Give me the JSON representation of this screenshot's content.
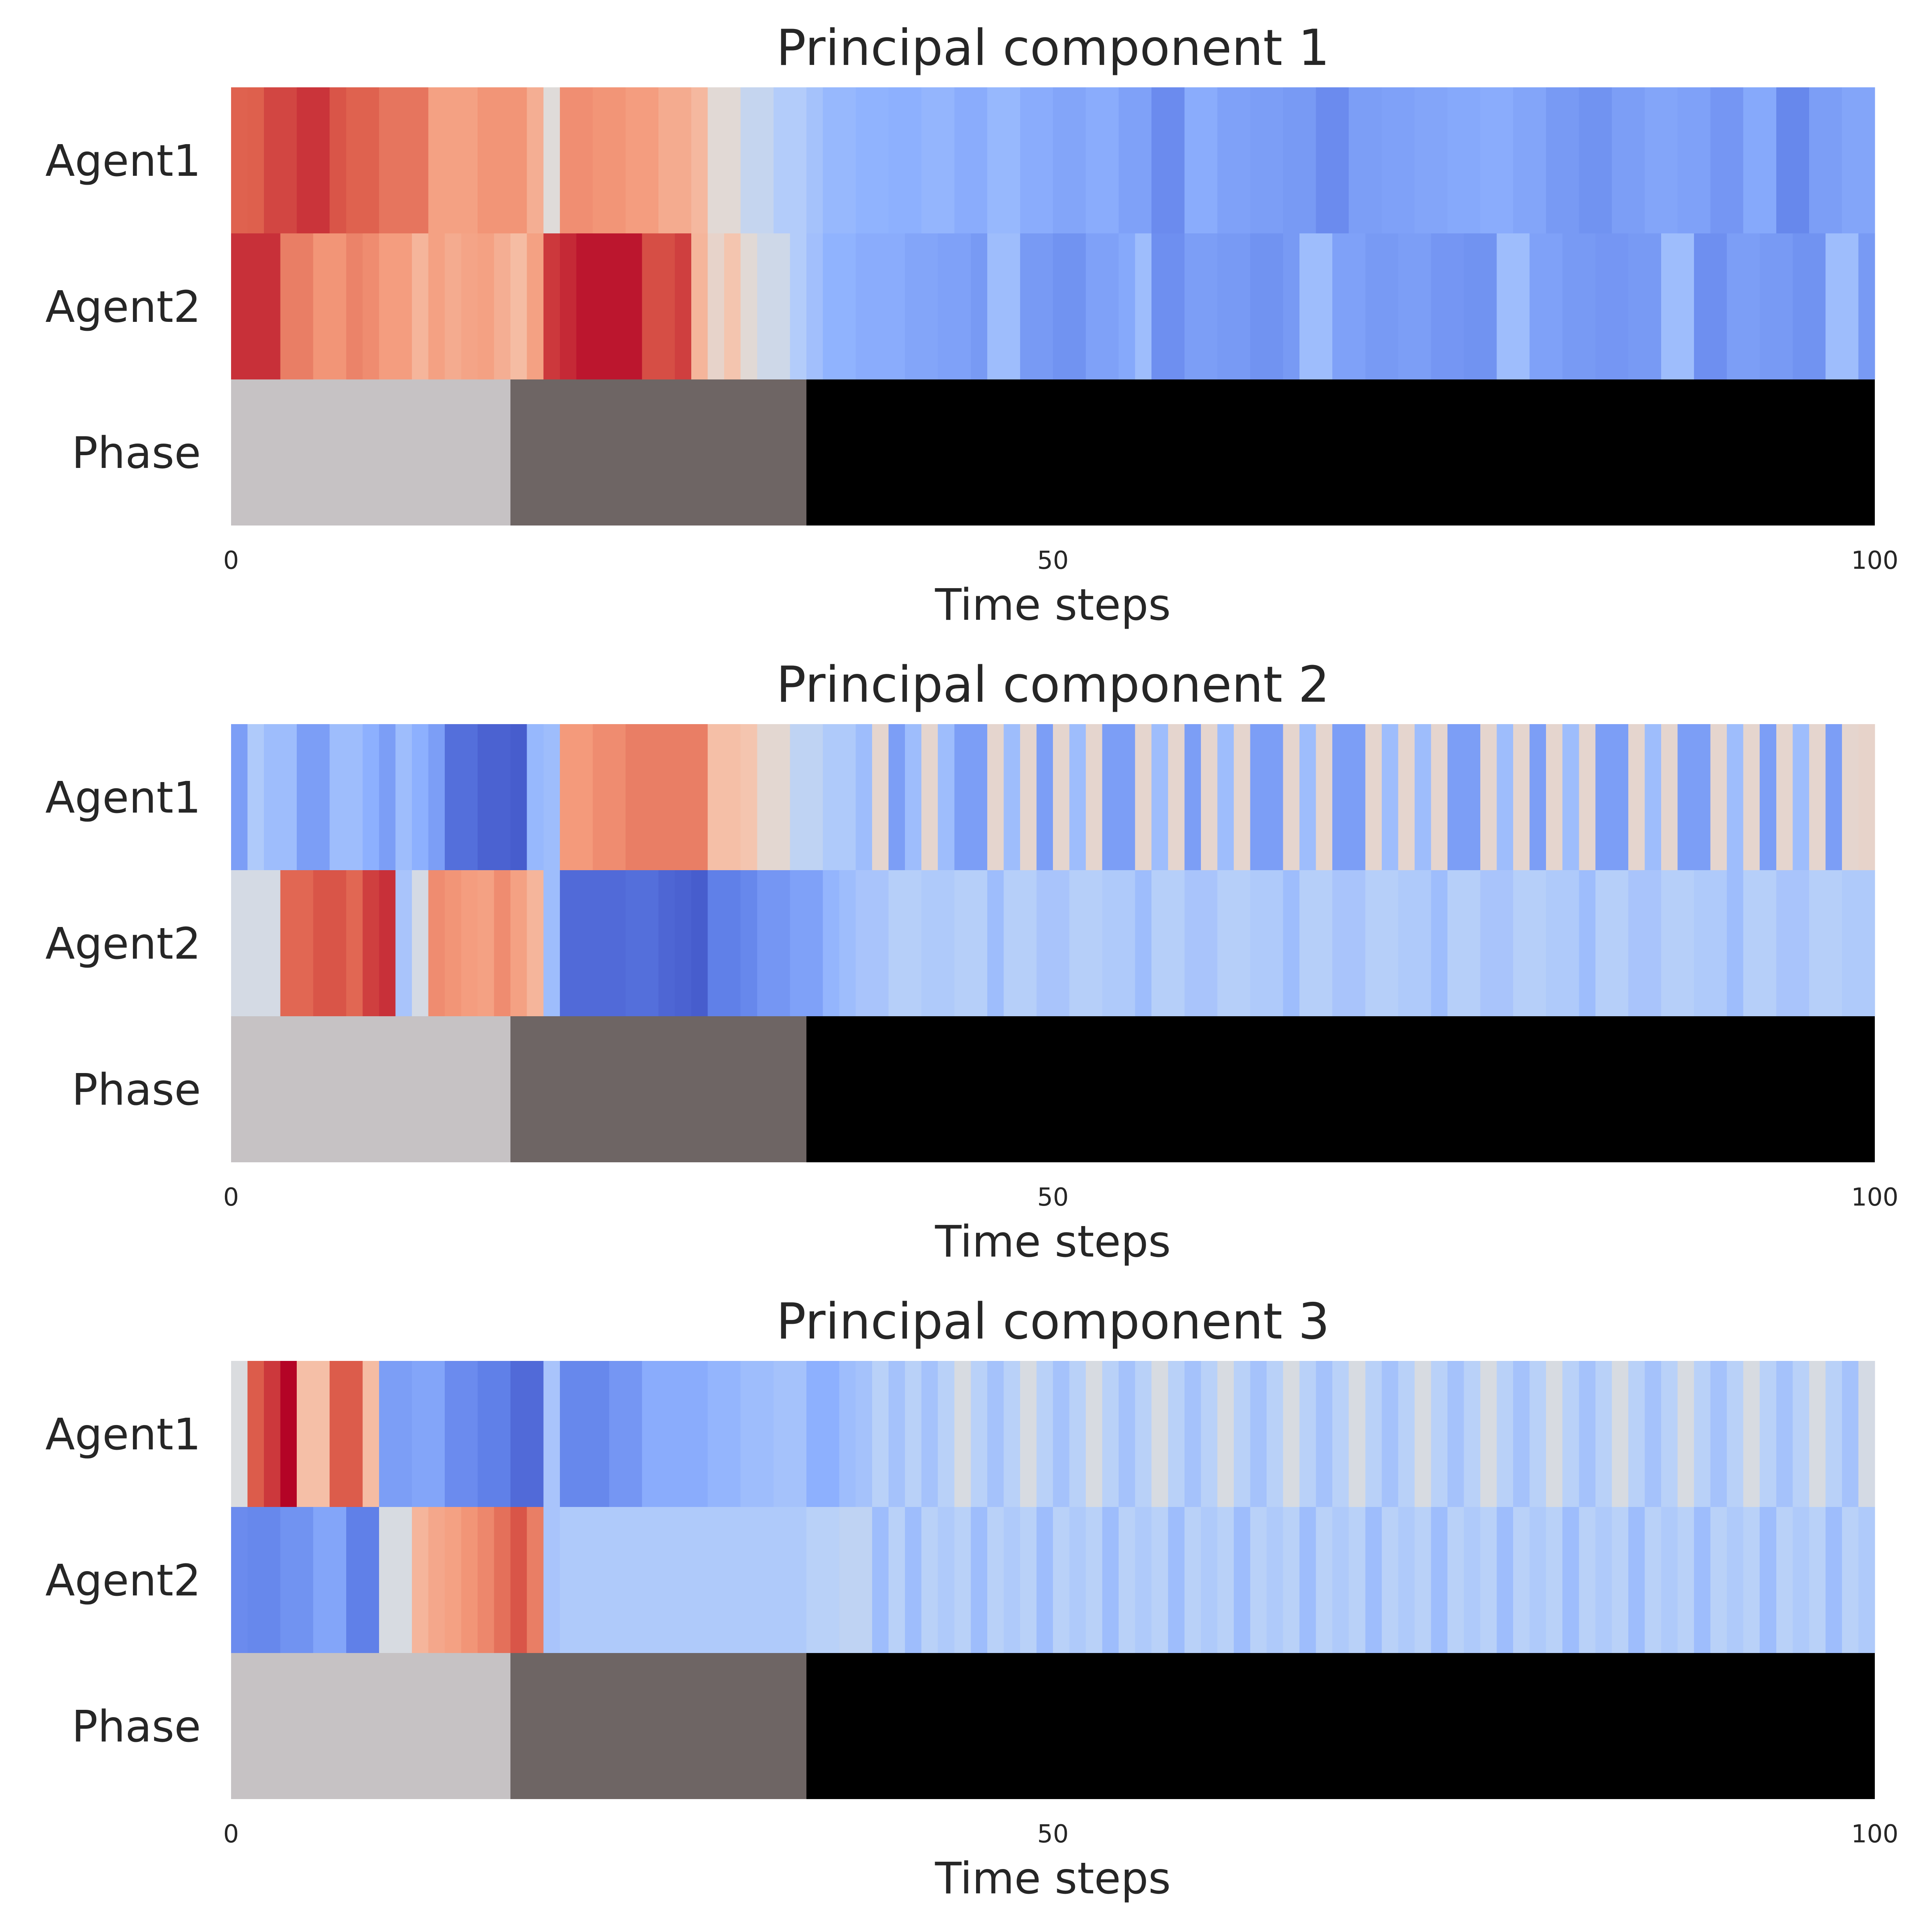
{
  "chart_data": [
    {
      "type": "heatmap",
      "title": "Principal component 1",
      "xlabel": "Time steps",
      "xticks": [
        0,
        50,
        100
      ],
      "xlim": [
        0,
        100
      ],
      "rows": [
        "Agent1",
        "Agent2",
        "Phase"
      ],
      "colormap": "coolwarm",
      "value_range": [
        -1,
        1
      ],
      "phase_segments": [
        {
          "start": 0,
          "end": 17,
          "color": "#c6c2c4"
        },
        {
          "start": 17,
          "end": 35,
          "color": "#6e6564"
        },
        {
          "start": 35,
          "end": 100,
          "color": "#000000"
        }
      ],
      "series": [
        {
          "name": "Agent1",
          "values": [
            0.74,
            0.75,
            0.82,
            0.82,
            0.87,
            0.87,
            0.78,
            0.74,
            0.74,
            0.66,
            0.66,
            0.66,
            0.46,
            0.46,
            0.46,
            0.52,
            0.52,
            0.52,
            0.38,
            0.02,
            0.55,
            0.55,
            0.52,
            0.52,
            0.48,
            0.48,
            0.4,
            0.4,
            0.32,
            0.04,
            0.04,
            -0.16,
            -0.16,
            -0.28,
            -0.28,
            -0.36,
            -0.44,
            -0.44,
            -0.48,
            -0.48,
            -0.5,
            -0.5,
            -0.46,
            -0.46,
            -0.52,
            -0.52,
            -0.44,
            -0.44,
            -0.52,
            -0.52,
            -0.56,
            -0.56,
            -0.52,
            -0.52,
            -0.58,
            -0.58,
            -0.7,
            -0.7,
            -0.52,
            -0.52,
            -0.58,
            -0.58,
            -0.6,
            -0.6,
            -0.62,
            -0.62,
            -0.7,
            -0.7,
            -0.6,
            -0.6,
            -0.58,
            -0.58,
            -0.56,
            -0.56,
            -0.54,
            -0.54,
            -0.52,
            -0.52,
            -0.56,
            -0.56,
            -0.62,
            -0.62,
            -0.66,
            -0.66,
            -0.6,
            -0.6,
            -0.56,
            -0.56,
            -0.58,
            -0.58,
            -0.64,
            -0.64,
            -0.54,
            -0.54,
            -0.72,
            -0.72,
            -0.6,
            -0.6,
            -0.56,
            -0.56
          ]
        },
        {
          "name": "Agent2",
          "values": [
            0.88,
            0.88,
            0.88,
            0.62,
            0.62,
            0.52,
            0.52,
            0.6,
            0.56,
            0.48,
            0.48,
            0.34,
            0.46,
            0.4,
            0.44,
            0.46,
            0.38,
            0.3,
            0.46,
            0.86,
            0.9,
            0.95,
            0.95,
            0.95,
            0.95,
            0.8,
            0.8,
            0.84,
            0.34,
            0.1,
            0.24,
            0.04,
            -0.1,
            -0.1,
            -0.28,
            -0.38,
            -0.48,
            -0.48,
            -0.52,
            -0.52,
            -0.52,
            -0.56,
            -0.56,
            -0.58,
            -0.58,
            -0.62,
            -0.4,
            -0.4,
            -0.62,
            -0.62,
            -0.66,
            -0.66,
            -0.58,
            -0.58,
            -0.54,
            -0.4,
            -0.68,
            -0.68,
            -0.6,
            -0.6,
            -0.62,
            -0.62,
            -0.66,
            -0.66,
            -0.62,
            -0.4,
            -0.4,
            -0.58,
            -0.58,
            -0.62,
            -0.62,
            -0.6,
            -0.6,
            -0.64,
            -0.64,
            -0.66,
            -0.66,
            -0.4,
            -0.4,
            -0.58,
            -0.58,
            -0.62,
            -0.62,
            -0.64,
            -0.64,
            -0.62,
            -0.62,
            -0.4,
            -0.4,
            -0.68,
            -0.68,
            -0.6,
            -0.6,
            -0.62,
            -0.62,
            -0.66,
            -0.66,
            -0.4,
            -0.4,
            -0.62
          ]
        }
      ]
    },
    {
      "type": "heatmap",
      "title": "Principal component 2",
      "xlabel": "Time steps",
      "xticks": [
        0,
        50,
        100
      ],
      "xlim": [
        0,
        100
      ],
      "rows": [
        "Agent1",
        "Agent2",
        "Phase"
      ],
      "colormap": "coolwarm",
      "value_range": [
        -1,
        1
      ],
      "phase_segments": [
        {
          "start": 0,
          "end": 17,
          "color": "#c6c2c4"
        },
        {
          "start": 17,
          "end": 35,
          "color": "#6e6564"
        },
        {
          "start": 35,
          "end": 100,
          "color": "#000000"
        }
      ],
      "series": [
        {
          "name": "Agent1",
          "values": [
            -0.6,
            -0.3,
            -0.4,
            -0.4,
            -0.6,
            -0.6,
            -0.4,
            -0.4,
            -0.5,
            -0.6,
            -0.4,
            -0.5,
            -0.6,
            -0.84,
            -0.84,
            -0.9,
            -0.9,
            -0.92,
            -0.44,
            -0.4,
            0.5,
            0.5,
            0.56,
            0.56,
            0.62,
            0.62,
            0.62,
            0.62,
            0.62,
            0.28,
            0.28,
            0.24,
            0.06,
            0.06,
            -0.2,
            -0.2,
            -0.3,
            -0.3,
            -0.4,
            0.08,
            -0.6,
            -0.4,
            0.08,
            -0.4,
            -0.6,
            -0.6,
            0.08,
            -0.4,
            0.08,
            -0.6,
            0.08,
            -0.4,
            0.08,
            -0.6,
            -0.6,
            0.08,
            -0.4,
            0.08,
            -0.6,
            0.08,
            -0.4,
            0.08,
            -0.6,
            -0.6,
            0.08,
            -0.4,
            0.08,
            -0.6,
            -0.6,
            0.08,
            -0.4,
            0.08,
            -0.4,
            0.08,
            -0.6,
            -0.6,
            0.08,
            -0.4,
            0.08,
            -0.6,
            0.08,
            -0.4,
            0.08,
            -0.6,
            -0.6,
            0.08,
            -0.4,
            0.08,
            -0.6,
            -0.6,
            0.08,
            -0.4,
            0.08,
            -0.6,
            0.08,
            -0.4,
            0.08,
            -0.6,
            0.08,
            0.1
          ]
        },
        {
          "name": "Agent2",
          "values": [
            -0.06,
            -0.06,
            -0.06,
            0.72,
            0.72,
            0.78,
            0.78,
            0.72,
            0.84,
            0.88,
            -0.34,
            -0.06,
            0.56,
            0.52,
            0.48,
            0.46,
            0.56,
            0.46,
            0.34,
            -0.4,
            -0.86,
            -0.86,
            -0.86,
            -0.86,
            -0.84,
            -0.84,
            -0.88,
            -0.9,
            -0.92,
            -0.76,
            -0.76,
            -0.72,
            -0.64,
            -0.64,
            -0.58,
            -0.58,
            -0.46,
            -0.4,
            -0.34,
            -0.34,
            -0.26,
            -0.26,
            -0.3,
            -0.3,
            -0.26,
            -0.26,
            -0.4,
            -0.26,
            -0.26,
            -0.34,
            -0.34,
            -0.26,
            -0.26,
            -0.3,
            -0.3,
            -0.4,
            -0.26,
            -0.26,
            -0.34,
            -0.34,
            -0.26,
            -0.26,
            -0.3,
            -0.3,
            -0.4,
            -0.26,
            -0.26,
            -0.34,
            -0.34,
            -0.26,
            -0.26,
            -0.3,
            -0.3,
            -0.4,
            -0.26,
            -0.26,
            -0.34,
            -0.34,
            -0.26,
            -0.26,
            -0.3,
            -0.3,
            -0.4,
            -0.26,
            -0.26,
            -0.34,
            -0.34,
            -0.26,
            -0.26,
            -0.3,
            -0.3,
            -0.4,
            -0.26,
            -0.26,
            -0.34,
            -0.34,
            -0.26,
            -0.26,
            -0.3,
            -0.3
          ]
        }
      ]
    },
    {
      "type": "heatmap",
      "title": "Principal component 3",
      "xlabel": "Time steps",
      "xticks": [
        0,
        50,
        100
      ],
      "xlim": [
        0,
        100
      ],
      "rows": [
        "Agent1",
        "Agent2",
        "Phase"
      ],
      "colormap": "coolwarm",
      "value_range": [
        -1,
        1
      ],
      "phase_segments": [
        {
          "start": 0,
          "end": 17,
          "color": "#c6c2c4"
        },
        {
          "start": 17,
          "end": 35,
          "color": "#6e6564"
        },
        {
          "start": 35,
          "end": 100,
          "color": "#000000"
        }
      ],
      "series": [
        {
          "name": "Agent1",
          "values": [
            -0.02,
            0.76,
            0.86,
            1.0,
            0.28,
            0.28,
            0.76,
            0.76,
            0.3,
            -0.6,
            -0.6,
            -0.56,
            -0.56,
            -0.7,
            -0.7,
            -0.76,
            -0.76,
            -0.86,
            -0.86,
            -0.34,
            -0.72,
            -0.72,
            -0.72,
            -0.64,
            -0.64,
            -0.52,
            -0.52,
            -0.52,
            -0.52,
            -0.46,
            -0.46,
            -0.4,
            -0.4,
            -0.36,
            -0.36,
            -0.5,
            -0.5,
            -0.4,
            -0.36,
            -0.24,
            -0.36,
            -0.24,
            -0.36,
            -0.24,
            -0.04,
            -0.24,
            -0.36,
            -0.24,
            -0.04,
            -0.24,
            -0.36,
            -0.24,
            -0.04,
            -0.24,
            -0.36,
            -0.24,
            -0.04,
            -0.24,
            -0.36,
            -0.24,
            -0.04,
            -0.24,
            -0.36,
            -0.24,
            -0.04,
            -0.24,
            -0.36,
            -0.24,
            -0.04,
            -0.24,
            -0.36,
            -0.24,
            -0.04,
            -0.24,
            -0.36,
            -0.24,
            -0.04,
            -0.24,
            -0.36,
            -0.24,
            -0.04,
            -0.24,
            -0.36,
            -0.24,
            -0.04,
            -0.24,
            -0.36,
            -0.24,
            -0.04,
            -0.24,
            -0.36,
            -0.24,
            -0.04,
            -0.24,
            -0.36,
            -0.24,
            -0.04,
            -0.24,
            -0.36,
            -0.06
          ]
        },
        {
          "name": "Agent2",
          "values": [
            -0.7,
            -0.72,
            -0.72,
            -0.66,
            -0.66,
            -0.56,
            -0.56,
            -0.76,
            -0.76,
            -0.04,
            -0.04,
            0.34,
            0.42,
            0.46,
            0.52,
            0.58,
            0.68,
            0.78,
            0.62,
            -0.34,
            -0.3,
            -0.3,
            -0.3,
            -0.3,
            -0.3,
            -0.3,
            -0.3,
            -0.3,
            -0.3,
            -0.3,
            -0.3,
            -0.3,
            -0.3,
            -0.3,
            -0.3,
            -0.24,
            -0.24,
            -0.2,
            -0.2,
            -0.4,
            -0.24,
            -0.4,
            -0.24,
            -0.3,
            -0.24,
            -0.4,
            -0.24,
            -0.3,
            -0.24,
            -0.4,
            -0.24,
            -0.3,
            -0.24,
            -0.4,
            -0.24,
            -0.3,
            -0.24,
            -0.4,
            -0.24,
            -0.3,
            -0.24,
            -0.4,
            -0.24,
            -0.3,
            -0.24,
            -0.4,
            -0.24,
            -0.3,
            -0.24,
            -0.4,
            -0.24,
            -0.3,
            -0.24,
            -0.4,
            -0.24,
            -0.3,
            -0.24,
            -0.4,
            -0.24,
            -0.3,
            -0.24,
            -0.4,
            -0.24,
            -0.3,
            -0.24,
            -0.4,
            -0.24,
            -0.3,
            -0.24,
            -0.4,
            -0.24,
            -0.3,
            -0.24,
            -0.4,
            -0.24,
            -0.3,
            -0.24,
            -0.4,
            -0.24,
            -0.3
          ]
        }
      ]
    }
  ]
}
